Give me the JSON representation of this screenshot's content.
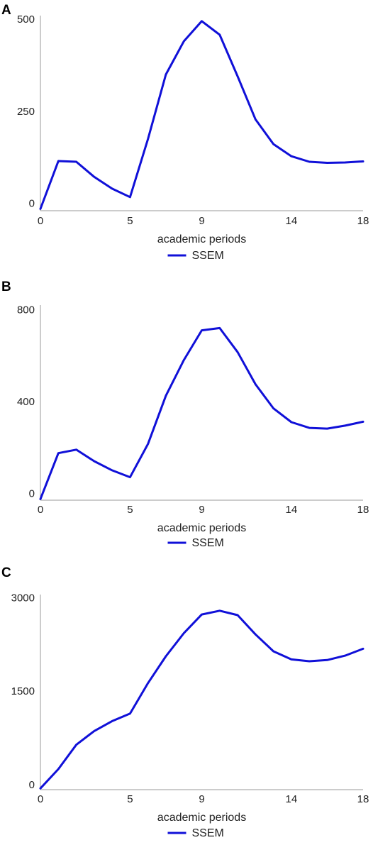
{
  "chart_data": [
    {
      "panel": "A",
      "type": "line",
      "xlabel": "academic periods",
      "xticks": [
        0,
        5,
        9,
        14,
        18
      ],
      "yticks": [
        0,
        250,
        500
      ],
      "xlim": [
        0,
        18
      ],
      "ylim": [
        -20,
        510
      ],
      "legend": "bottom-center",
      "series": [
        {
          "name": "SSEM",
          "color": "#1010d8",
          "x": [
            0,
            1,
            2,
            3,
            4,
            5,
            6,
            7,
            8,
            9,
            10,
            11,
            12,
            13,
            14,
            15,
            16,
            17,
            18
          ],
          "y": [
            -15,
            115,
            113,
            72,
            40,
            17,
            175,
            350,
            440,
            495,
            458,
            345,
            228,
            161,
            128,
            113,
            110,
            111,
            114
          ]
        }
      ]
    },
    {
      "panel": "B",
      "type": "line",
      "xlabel": "academic periods",
      "xticks": [
        0,
        5,
        9,
        14,
        18
      ],
      "yticks": [
        0,
        400,
        800
      ],
      "xlim": [
        0,
        18
      ],
      "ylim": [
        -30,
        820
      ],
      "legend": "bottom-center",
      "series": [
        {
          "name": "SSEM",
          "color": "#1010d8",
          "x": [
            0,
            1,
            2,
            3,
            4,
            5,
            6,
            7,
            8,
            9,
            10,
            11,
            12,
            13,
            14,
            15,
            16,
            17,
            18
          ],
          "y": [
            -25,
            175,
            190,
            140,
            100,
            70,
            215,
            425,
            580,
            710,
            720,
            615,
            475,
            370,
            310,
            285,
            282,
            295,
            312
          ]
        }
      ]
    },
    {
      "panel": "C",
      "type": "line",
      "xlabel": "academic periods",
      "xticks": [
        0,
        5,
        9,
        14,
        18
      ],
      "yticks": [
        0,
        1500,
        3000
      ],
      "xlim": [
        0,
        18
      ],
      "ylim": [
        -80,
        3050
      ],
      "legend": "bottom-center",
      "series": [
        {
          "name": "SSEM",
          "color": "#1010d8",
          "x": [
            0,
            1,
            2,
            3,
            4,
            5,
            6,
            7,
            8,
            9,
            10,
            11,
            12,
            13,
            14,
            15,
            16,
            17,
            18
          ],
          "y": [
            -60,
            250,
            640,
            860,
            1020,
            1140,
            1630,
            2060,
            2430,
            2730,
            2790,
            2720,
            2410,
            2140,
            2010,
            1980,
            2000,
            2070,
            2180
          ]
        }
      ]
    }
  ]
}
